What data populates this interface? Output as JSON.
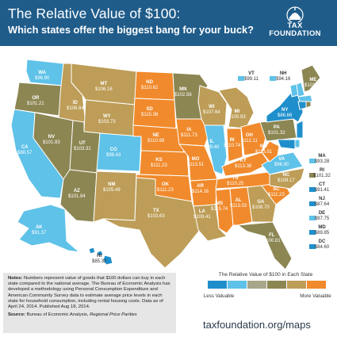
{
  "header": {
    "title": "The Relative Value of $100:",
    "subtitle": "Which states offer the biggest bang for your buck?",
    "logo_line1": "TAX",
    "logo_line2": "FOUNDATION"
  },
  "colors": {
    "header_bg": "#1f5c8a",
    "blue_dark": "#1f8fcc",
    "blue_light": "#5fc2e8",
    "gray": "#a9a58a",
    "olive": "#8c8653",
    "tan": "#bd9d57",
    "orange": "#f08a2c"
  },
  "states": [
    {
      "abbr": "WA",
      "value": "$96.90"
    },
    {
      "abbr": "OR",
      "value": "$101.21"
    },
    {
      "abbr": "CA",
      "value": "$88.57"
    },
    {
      "abbr": "ID",
      "value": "$106.84"
    },
    {
      "abbr": "NV",
      "value": "$101.83"
    },
    {
      "abbr": "MT",
      "value": "$106.16"
    },
    {
      "abbr": "WY",
      "value": "$103.73"
    },
    {
      "abbr": "UT",
      "value": "$103.31"
    },
    {
      "abbr": "AZ",
      "value": "$101.94"
    },
    {
      "abbr": "CO",
      "value": "$98.43"
    },
    {
      "abbr": "NM",
      "value": "$105.49"
    },
    {
      "abbr": "ND",
      "value": "$110.62"
    },
    {
      "abbr": "SD",
      "value": "$115.38"
    },
    {
      "abbr": "NE",
      "value": "$110.99"
    },
    {
      "abbr": "KS",
      "value": "$111.23"
    },
    {
      "abbr": "OK",
      "value": "$111.23"
    },
    {
      "abbr": "TX",
      "value": "$103.63"
    },
    {
      "abbr": "MN",
      "value": "$102.56"
    },
    {
      "abbr": "IA",
      "value": "$111.73"
    },
    {
      "abbr": "MO",
      "value": "$113.51"
    },
    {
      "abbr": "AR",
      "value": "$114.16"
    },
    {
      "abbr": "LA",
      "value": "$109.41"
    },
    {
      "abbr": "WI",
      "value": "$107.64"
    },
    {
      "abbr": "IL",
      "value": "$99.40"
    },
    {
      "abbr": "MS",
      "value": "$115.74"
    },
    {
      "abbr": "MI",
      "value": "$105.93"
    },
    {
      "abbr": "IN",
      "value": "$110.74"
    },
    {
      "abbr": "OH",
      "value": "$112.11"
    },
    {
      "abbr": "KY",
      "value": "$113.38"
    },
    {
      "abbr": "TN",
      "value": "$110.25"
    },
    {
      "abbr": "AL",
      "value": "$113.53"
    },
    {
      "abbr": "GA",
      "value": "$108.70"
    },
    {
      "abbr": "FL",
      "value": "$100.81"
    },
    {
      "abbr": "SC",
      "value": "$111.23"
    },
    {
      "abbr": "NC",
      "value": "$109.17"
    },
    {
      "abbr": "VA",
      "value": "$96.90"
    },
    {
      "abbr": "WV",
      "value": "$113.51"
    },
    {
      "abbr": "PA",
      "value": "$101.32"
    },
    {
      "abbr": "NY",
      "value": "$86.66"
    },
    {
      "abbr": "ME",
      "value": "$101.52"
    },
    {
      "abbr": "AK",
      "value": "$91.37"
    },
    {
      "abbr": "HI",
      "value": "$85.32"
    }
  ],
  "northeast": [
    {
      "abbr": "VT",
      "value": "$99.11"
    },
    {
      "abbr": "NH",
      "value": "$94.16"
    }
  ],
  "side_states": [
    {
      "abbr": "MA",
      "value": "$93.28"
    },
    {
      "abbr": "RI",
      "value": "$101.32"
    },
    {
      "abbr": "CT",
      "value": "$91.41"
    },
    {
      "abbr": "NJ",
      "value": "$87.64"
    },
    {
      "abbr": "DE",
      "value": "$97.75"
    },
    {
      "abbr": "MD",
      "value": "$89.85"
    },
    {
      "abbr": "DC",
      "value": "$84.60"
    }
  ],
  "notes": {
    "label": "Notes:",
    "body": "Numbers represent value of goods that $100 dollars can buy in each state compared to the national average. The Bureau of Economic Analysis has developed a methodology using Personal Consumption Expenditure and American Community Survey data to estimate average price levels in each state for household consumption, including rental housing costs. Data as of April 24, 2014. Published Aug 18, 2014.",
    "source_label": "Source:",
    "source_text": "Bureau of Economic Analysis,",
    "source_italic": "Regional Price Parities"
  },
  "legend": {
    "title": "The Relative Value of $100 in Each State",
    "less": "Less Valuable",
    "more": "More Valuable",
    "colors": [
      "#1f8fcc",
      "#5fc2e8",
      "#a9a58a",
      "#8c8653",
      "#bd9d57",
      "#f08a2c"
    ]
  },
  "url": "taxfoundation.org/maps"
}
